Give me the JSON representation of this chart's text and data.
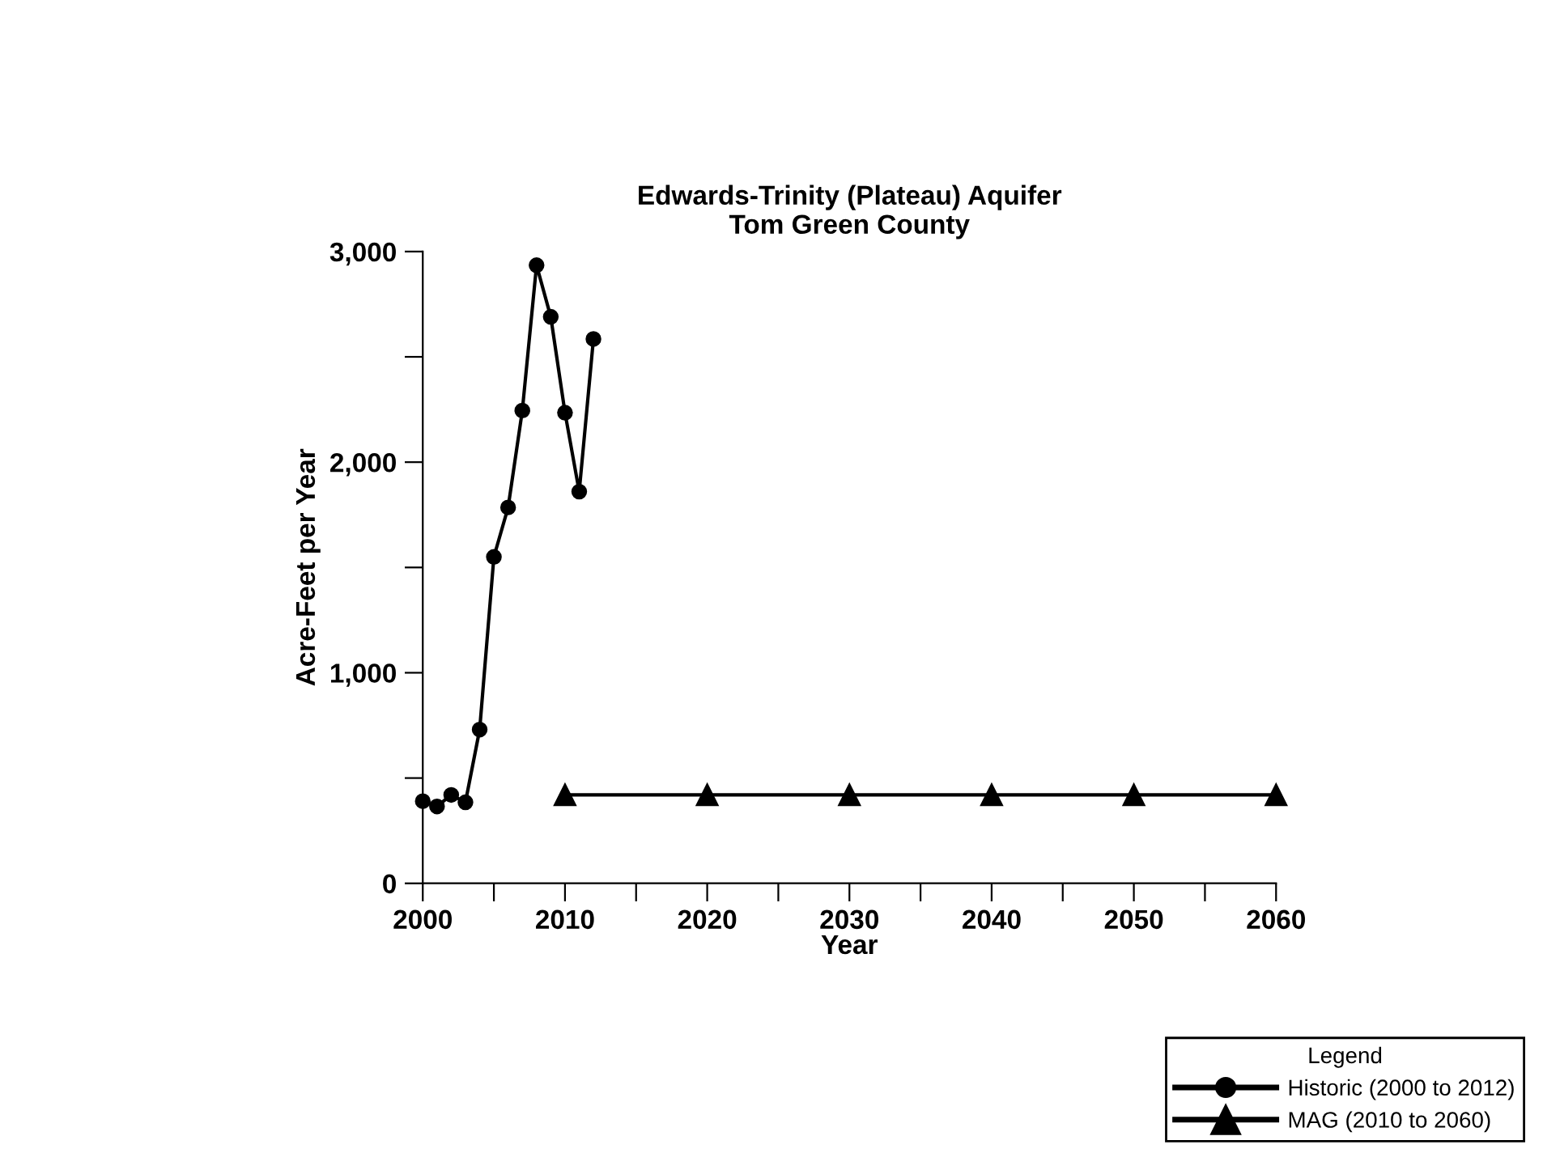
{
  "chart_data": {
    "type": "line",
    "title": "Edwards-Trinity (Plateau) Aquifer\nTom Green County",
    "xlabel": "Year",
    "ylabel": "Acre-Feet per Year",
    "legend_title": "Legend",
    "xlim": [
      2000,
      2060
    ],
    "ylim": [
      0,
      3000
    ],
    "xticks": [
      2000,
      {
        "value": 2005,
        "label": null
      },
      2010,
      {
        "value": 2015,
        "label": null
      },
      2020,
      {
        "value": 2025,
        "label": null
      },
      2030,
      {
        "value": 2035,
        "label": null
      },
      2040,
      {
        "value": 2045,
        "label": null
      },
      2050,
      {
        "value": 2055,
        "label": null
      },
      2060
    ],
    "yticks": [
      {
        "value": 0,
        "label": "0"
      },
      {
        "value": 500,
        "label": null
      },
      {
        "value": 1000,
        "label": "1,000"
      },
      {
        "value": 1500,
        "label": null
      },
      {
        "value": 2000,
        "label": "2,000"
      },
      {
        "value": 2500,
        "label": null
      },
      {
        "value": 3000,
        "label": "3,000"
      }
    ],
    "grid": false,
    "legend": "bottom right",
    "line_style": "solid",
    "series": [
      {
        "name": "Historic (2000 to 2012)",
        "color": "#000000",
        "marker": "circle",
        "x": [
          2000,
          2001,
          2002,
          2003,
          2004,
          2005,
          2006,
          2007,
          2008,
          2009,
          2010,
          2011,
          2012
        ],
        "values": [
          390,
          365,
          420,
          385,
          730,
          1550,
          1785,
          2245,
          2935,
          2690,
          2235,
          1860,
          2585
        ]
      },
      {
        "name": "MAG (2010 to 2060)",
        "color": "#000000",
        "marker": "triangle",
        "x": [
          2010,
          2020,
          2030,
          2040,
          2050,
          2060
        ],
        "values": [
          420,
          420,
          420,
          420,
          420,
          420
        ]
      }
    ]
  }
}
